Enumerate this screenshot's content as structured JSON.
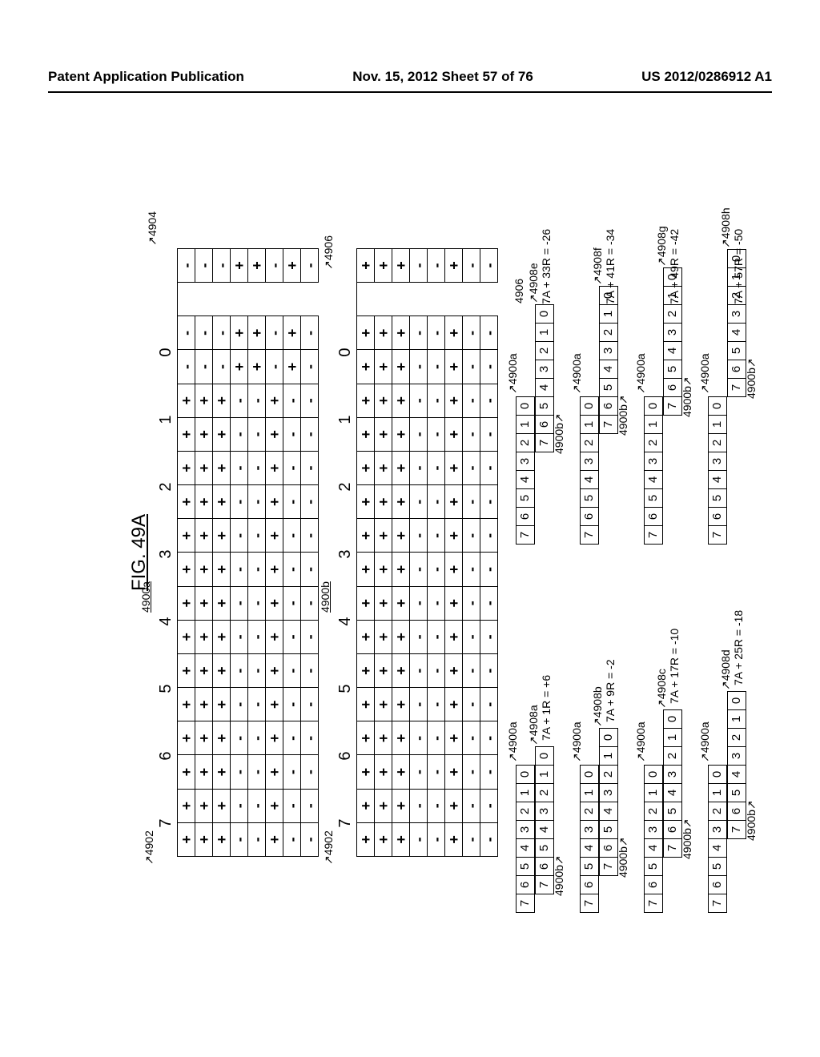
{
  "header": {
    "left": "Patent Application Publication",
    "center": "Nov. 15, 2012  Sheet 57 of 76",
    "right": "US 2012/0286912 A1"
  },
  "figure_title": "FIG. 49A",
  "tableA": {
    "ref_label": "4900a",
    "leader_left": "4902",
    "leader_right": "4904",
    "columns": [
      "7",
      "6",
      "5",
      "4",
      "3",
      "2",
      "1",
      "0"
    ],
    "rows": [
      [
        "+",
        "+",
        "+",
        "+",
        "+",
        "+",
        "+",
        "-",
        "",
        "-"
      ],
      [
        "+",
        "+",
        "+",
        "+",
        "+",
        "+",
        "+",
        "-",
        "",
        "-"
      ],
      [
        "+",
        "+",
        "+",
        "+",
        "+",
        "+",
        "+",
        "-",
        "",
        "-"
      ],
      [
        "-",
        "-",
        "-",
        "-",
        "-",
        "-",
        "-",
        "+",
        "",
        "+"
      ],
      [
        "-",
        "-",
        "-",
        "-",
        "-",
        "-",
        "-",
        "+",
        "",
        "+"
      ],
      [
        "+",
        "+",
        "+",
        "+",
        "+",
        "+",
        "+",
        "-",
        "",
        "-"
      ],
      [
        "-",
        "-",
        "-",
        "-",
        "-",
        "-",
        "-",
        "+",
        "",
        "+"
      ],
      [
        "-",
        "-",
        "-",
        "-",
        "-",
        "-",
        "-",
        "-",
        "",
        "-"
      ]
    ]
  },
  "tableB": {
    "ref_label": "4900b",
    "leader_left": "4902",
    "leader_right": "4906",
    "columns": [
      "7",
      "6",
      "5",
      "4",
      "3",
      "2",
      "1",
      "0"
    ],
    "rows": [
      [
        "+",
        "+",
        "+",
        "+",
        "+",
        "+",
        "+",
        "+",
        "",
        "+"
      ],
      [
        "+",
        "+",
        "+",
        "+",
        "+",
        "+",
        "+",
        "+",
        "",
        "+"
      ],
      [
        "+",
        "+",
        "+",
        "+",
        "+",
        "+",
        "+",
        "+",
        "",
        "+"
      ],
      [
        "-",
        "-",
        "-",
        "-",
        "-",
        "-",
        "-",
        "-",
        "",
        "-"
      ],
      [
        "-",
        "-",
        "-",
        "-",
        "-",
        "-",
        "-",
        "-",
        "",
        "-"
      ],
      [
        "+",
        "+",
        "+",
        "+",
        "+",
        "+",
        "+",
        "+",
        "",
        "+"
      ],
      [
        "-",
        "-",
        "-",
        "-",
        "-",
        "-",
        "-",
        "-",
        "",
        "-"
      ],
      [
        "-",
        "-",
        "-",
        "-",
        "-",
        "-",
        "-",
        "-",
        "",
        "-"
      ]
    ]
  },
  "sequence": [
    "7",
    "6",
    "5",
    "4",
    "3",
    "2",
    "1",
    "0"
  ],
  "pairs_left": [
    {
      "shift_cells": 1,
      "ref8": "4908a",
      "result": "7A + 1R = +6"
    },
    {
      "shift_cells": 2,
      "ref8": "4908b",
      "result": "7A + 9R = -2"
    },
    {
      "shift_cells": 3,
      "ref8": "4908c",
      "result": "7A + 17R = -10"
    },
    {
      "shift_cells": 4,
      "ref8": "4908d",
      "result": "7A + 25R = -18"
    }
  ],
  "pairs_right": [
    {
      "shift_cells": 5,
      "ref8": "4908e",
      "result": "7A + 33R = -26",
      "extra_ref": "4906"
    },
    {
      "shift_cells": 6,
      "ref8": "4908f",
      "result": "7A + 41R = -34"
    },
    {
      "shift_cells": 7,
      "ref8": "4908g",
      "result": "7A + 49R = -42"
    },
    {
      "shift_cells": 8,
      "ref8": "4908h",
      "result": "7A + 57R = -50"
    }
  ],
  "label_a": "4900a",
  "label_b": "4900b"
}
